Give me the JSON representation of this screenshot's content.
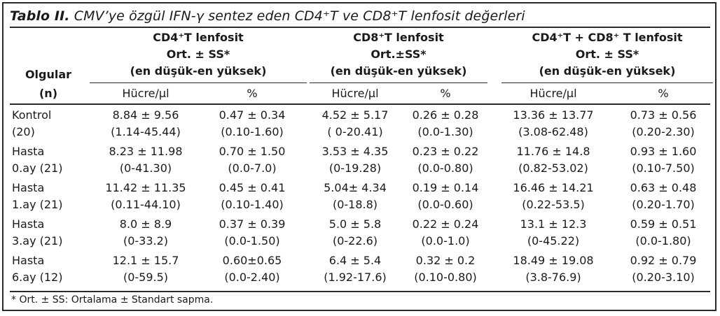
{
  "title": {
    "bold": "Tablo II.",
    "text": "CMV’ye özgül IFN-γ sentez eden CD4⁺T ve CD8⁺T lenfosit değerleri"
  },
  "header": {
    "olgular": "Olgular",
    "n": "(n)",
    "groups": [
      {
        "line1": "CD4⁺T lenfosit",
        "line2": "Ort. ± SS*",
        "line3": "(en düşük-en yüksek)",
        "col1": "Hücre/µl",
        "col2": "%"
      },
      {
        "line1": "CD8⁺T lenfosit",
        "line2": "Ort.±SS*",
        "line3": "(en düşük-en yüksek)",
        "col1": "Hücre/µl",
        "col2": "%"
      },
      {
        "line1": "CD4⁺T + CD8⁺ T lenfosit",
        "line2": "Ort. ± SS*",
        "line3": "(en düşük-en yüksek)",
        "col1": "Hücre/µl",
        "col2": "%"
      }
    ]
  },
  "rows": [
    {
      "label1": "Kontrol",
      "label2": "(20)",
      "v": [
        [
          "8.84 ± 9.56",
          "(1.14-45.44)"
        ],
        [
          "0.47 ± 0.34",
          "(0.10-1.60)"
        ],
        [
          "4.52 ± 5.17",
          "( 0-20.41)"
        ],
        [
          "0.26 ± 0.28",
          "(0.0-1.30)"
        ],
        [
          "13.36 ± 13.77",
          "(3.08-62.48)"
        ],
        [
          "0.73 ± 0.56",
          "(0.20-2.30)"
        ]
      ]
    },
    {
      "label1": "Hasta",
      "label2": "0.ay (21)",
      "v": [
        [
          "8.23 ± 11.98",
          "(0-41.30)"
        ],
        [
          "0.70 ± 1.50",
          "(0.0-7.0)"
        ],
        [
          "3.53 ± 4.35",
          "(0-19.28)"
        ],
        [
          "0.23 ± 0.22",
          "(0.0-0.80)"
        ],
        [
          "11.76 ± 14.8",
          "(0.82-53.02)"
        ],
        [
          "0.93 ± 1.60",
          "(0.10-7.50)"
        ]
      ]
    },
    {
      "label1": "Hasta",
      "label2": "1.ay (21)",
      "v": [
        [
          "11.42 ± 11.35",
          "(0.11-44.10)"
        ],
        [
          "0.45 ± 0.41",
          "(0.10-1.40)"
        ],
        [
          "5.04± 4.34",
          "(0-18.8)"
        ],
        [
          "0.19 ± 0.14",
          "(0.0-0.60)"
        ],
        [
          "16.46 ± 14.21",
          "(0.22-53.5)"
        ],
        [
          "0.63 ± 0.48",
          "(0.20-1.70)"
        ]
      ]
    },
    {
      "label1": "Hasta",
      "label2": "3.ay (21)",
      "v": [
        [
          "8.0 ± 8.9",
          "(0-33.2)"
        ],
        [
          "0.37 ± 0.39",
          "(0.0-1.50)"
        ],
        [
          "5.0 ± 5.8",
          "(0-22.6)"
        ],
        [
          "0.22 ± 0.24",
          "(0.0-1.0)"
        ],
        [
          "13.1 ± 12.3",
          "(0-45.22)"
        ],
        [
          "0.59 ± 0.51",
          "(0.0-1.80)"
        ]
      ]
    },
    {
      "label1": "Hasta",
      "label2": "6.ay (12)",
      "v": [
        [
          "12.1 ± 15.7",
          "(0-59.5)"
        ],
        [
          "0.60±0.65",
          "(0.0-2.40)"
        ],
        [
          "6.4 ± 5.4",
          "(1.92-17.6)"
        ],
        [
          "0.32 ± 0.2",
          "(0.10-0.80)"
        ],
        [
          "18.49 ± 19.08",
          "(3.8-76.9)"
        ],
        [
          "0.92 ± 0.79",
          "(0.20-3.10)"
        ]
      ]
    }
  ],
  "footnote": "* Ort. ± SS: Ortalama ± Standart sapma."
}
